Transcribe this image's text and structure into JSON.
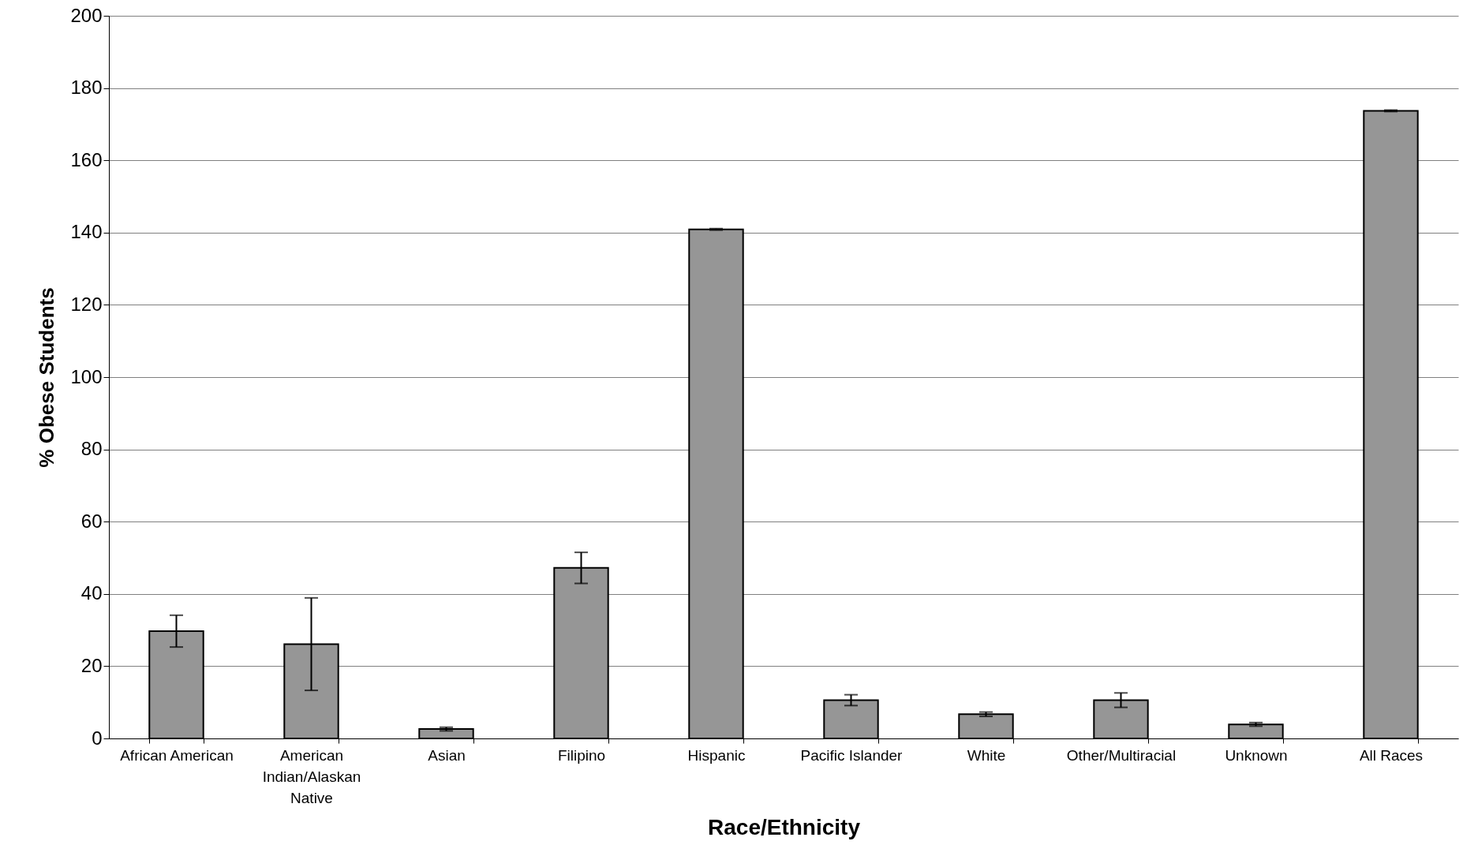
{
  "chart_data": {
    "type": "bar",
    "xlabel": "Race/Ethnicity",
    "ylabel": "% Obese Students",
    "categories": [
      "African American",
      "American Indian/Alaskan Native",
      "Asian",
      "Filipino",
      "Hispanic",
      "Pacific Islander",
      "White",
      "Other/Multiracial",
      "Unknown",
      "All Races"
    ],
    "values": [
      29.7,
      26.1,
      2.6,
      47.2,
      140.9,
      10.6,
      6.7,
      10.6,
      3.9,
      173.7
    ],
    "errors": [
      4.4,
      12.8,
      0.5,
      4.3,
      0.2,
      1.5,
      0.6,
      2,
      0.5,
      0.2
    ],
    "color": "#969696",
    "ylim": [
      0,
      200
    ],
    "yticks": [
      0,
      20,
      40,
      60,
      80,
      100,
      120,
      140,
      160,
      180,
      200
    ],
    "grid": "y"
  }
}
